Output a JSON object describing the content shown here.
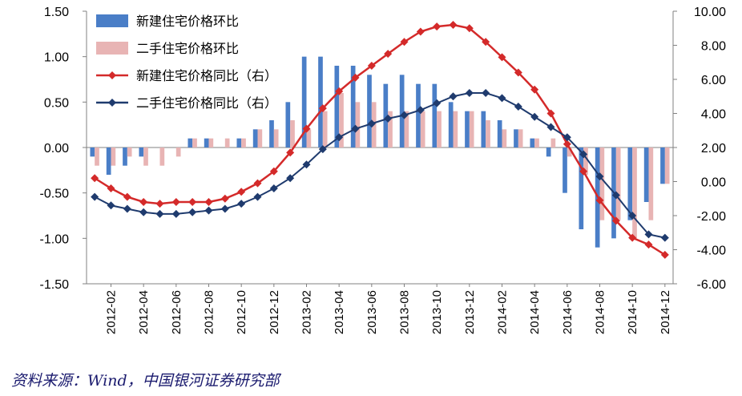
{
  "chart_data": {
    "type": "bar+line",
    "categories": [
      "2012-01",
      "2012-02",
      "2012-03",
      "2012-04",
      "2012-05",
      "2012-06",
      "2012-07",
      "2012-08",
      "2012-09",
      "2012-10",
      "2012-11",
      "2012-12",
      "2013-01",
      "2013-02",
      "2013-03",
      "2013-04",
      "2013-05",
      "2013-06",
      "2013-07",
      "2013-08",
      "2013-09",
      "2013-10",
      "2013-11",
      "2013-12",
      "2014-01",
      "2014-02",
      "2014-03",
      "2014-04",
      "2014-05",
      "2014-06",
      "2014-07",
      "2014-08",
      "2014-09",
      "2014-10",
      "2014-11",
      "2014-12"
    ],
    "x_tick_labels": [
      "2012-02",
      "2012-04",
      "2012-06",
      "2012-08",
      "2012-10",
      "2012-12",
      "2013-02",
      "2013-04",
      "2013-06",
      "2013-08",
      "2013-10",
      "2013-12",
      "2014-02",
      "2014-04",
      "2014-06",
      "2014-08",
      "2014-10",
      "2014-12"
    ],
    "y_left_ticks": [
      "1.50",
      "1.00",
      "0.50",
      "0.00",
      "-0.50",
      "-1.00",
      "-1.50"
    ],
    "y_right_ticks": [
      "10.00",
      "8.00",
      "6.00",
      "4.00",
      "2.00",
      "0.00",
      "-2.00",
      "-4.00",
      "-6.00"
    ],
    "ylim_left": [
      -1.5,
      1.5
    ],
    "ylim_right": [
      -6,
      10
    ],
    "legend_position": "top-left",
    "series": [
      {
        "name": "新建住宅价格环比",
        "type": "bar",
        "axis": "left",
        "color": "#4a7ec7",
        "values": [
          -0.1,
          -0.3,
          -0.2,
          -0.1,
          0,
          0,
          0.1,
          0.1,
          0,
          0.1,
          0.2,
          0.3,
          0.5,
          1.0,
          1.0,
          0.9,
          0.9,
          0.8,
          0.7,
          0.8,
          0.7,
          0.7,
          0.5,
          0.4,
          0.4,
          0.3,
          0.2,
          0.1,
          -0.1,
          -0.5,
          -0.9,
          -1.1,
          -1.0,
          -0.8,
          -0.6,
          -0.4
        ]
      },
      {
        "name": "二手住宅价格环比",
        "type": "bar",
        "axis": "left",
        "color": "#e8b4b4",
        "values": [
          -0.2,
          -0.2,
          -0.1,
          -0.2,
          -0.2,
          -0.1,
          0.1,
          0.1,
          0.1,
          0.1,
          0.2,
          0.2,
          0.3,
          0.2,
          0.4,
          0.6,
          0.5,
          0.5,
          0.4,
          0.4,
          0.4,
          0.4,
          0.4,
          0.4,
          0.3,
          0.2,
          0.2,
          0.1,
          0.1,
          -0.1,
          -0.3,
          -0.8,
          -0.8,
          -1.0,
          -0.8,
          -0.4
        ]
      },
      {
        "name": "新建住宅价格同比（右）",
        "type": "line",
        "axis": "right",
        "color": "#d42a2a",
        "marker": "diamond",
        "values": [
          0.2,
          -0.4,
          -0.9,
          -1.2,
          -1.3,
          -1.2,
          -1.2,
          -1.2,
          -1.0,
          -0.6,
          -0.1,
          0.6,
          1.7,
          3.1,
          4.3,
          5.3,
          6.1,
          6.8,
          7.5,
          8.2,
          8.8,
          9.1,
          9.2,
          9.0,
          8.2,
          7.3,
          6.4,
          5.4,
          4.0,
          2.2,
          0.6,
          -1.1,
          -2.3,
          -3.3,
          -3.7,
          -4.3
        ]
      },
      {
        "name": "二手住宅价格同比（右）",
        "type": "line",
        "axis": "right",
        "color": "#1f3b6e",
        "marker": "diamond",
        "values": [
          -0.9,
          -1.4,
          -1.6,
          -1.8,
          -1.9,
          -1.9,
          -1.8,
          -1.7,
          -1.6,
          -1.3,
          -0.9,
          -0.4,
          0.2,
          1.0,
          1.9,
          2.6,
          3.1,
          3.4,
          3.7,
          3.9,
          4.2,
          4.6,
          5.0,
          5.2,
          5.2,
          4.9,
          4.4,
          3.8,
          3.2,
          2.6,
          1.6,
          0.3,
          -0.8,
          -2.0,
          -3.1,
          -3.3
        ]
      }
    ]
  },
  "source_text": "资料来源：Wind，中国银河证券研究部"
}
